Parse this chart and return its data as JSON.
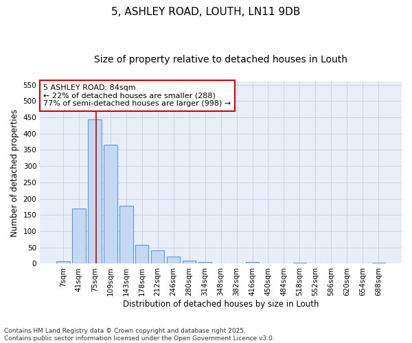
{
  "title": "5, ASHLEY ROAD, LOUTH, LN11 9DB",
  "subtitle": "Size of property relative to detached houses in Louth",
  "xlabel": "Distribution of detached houses by size in Louth",
  "ylabel": "Number of detached properties",
  "categories": [
    "7sqm",
    "41sqm",
    "75sqm",
    "109sqm",
    "143sqm",
    "178sqm",
    "212sqm",
    "246sqm",
    "280sqm",
    "314sqm",
    "348sqm",
    "382sqm",
    "416sqm",
    "450sqm",
    "484sqm",
    "518sqm",
    "552sqm",
    "586sqm",
    "620sqm",
    "654sqm",
    "688sqm"
  ],
  "values": [
    8,
    170,
    443,
    365,
    177,
    57,
    40,
    21,
    10,
    6,
    0,
    0,
    5,
    0,
    0,
    4,
    0,
    0,
    0,
    0,
    4
  ],
  "bar_color": "#c5d8f0",
  "bar_edge_color": "#5b9bd5",
  "vline_x": 2.1,
  "vline_color": "#cc0000",
  "annotation_text": "5 ASHLEY ROAD: 84sqm\n← 22% of detached houses are smaller (288)\n77% of semi-detached houses are larger (998) →",
  "annotation_box_color": "#cc0000",
  "annotation_bg": "#ffffff",
  "ylim": [
    0,
    560
  ],
  "yticks": [
    0,
    50,
    100,
    150,
    200,
    250,
    300,
    350,
    400,
    450,
    500,
    550
  ],
  "grid_color": "#c8d4e8",
  "bg_color": "#e8eef8",
  "footnote": "Contains HM Land Registry data © Crown copyright and database right 2025.\nContains public sector information licensed under the Open Government Licence v3.0.",
  "title_fontsize": 11,
  "subtitle_fontsize": 10,
  "xlabel_fontsize": 8.5,
  "ylabel_fontsize": 8.5,
  "tick_fontsize": 7.5,
  "annotation_fontsize": 8,
  "footnote_fontsize": 6.5
}
